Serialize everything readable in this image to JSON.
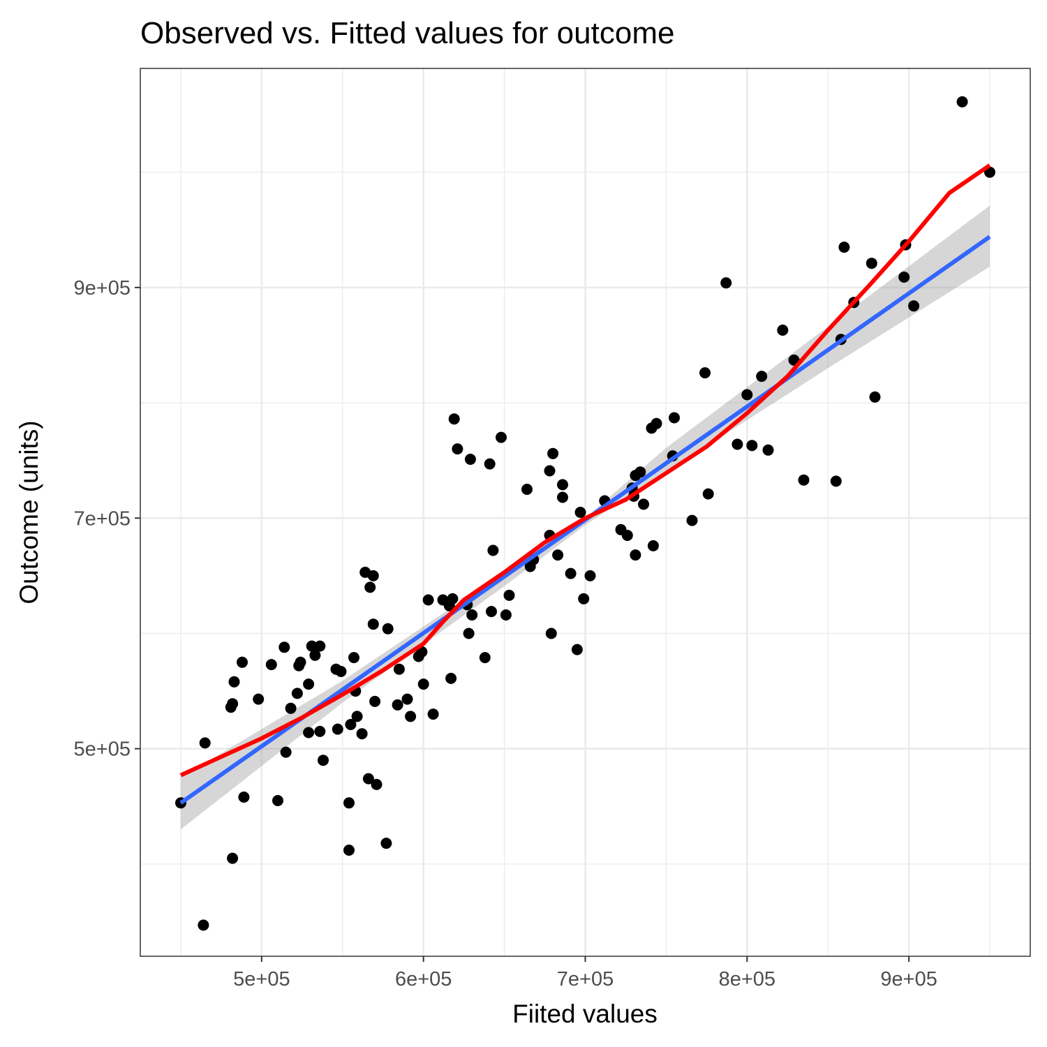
{
  "chart_data": {
    "type": "scatter",
    "title": "Observed vs. Fitted values for outcome",
    "xlabel": "Fiited values",
    "ylabel": "Outcome (units)",
    "xlim": [
      425000,
      975000
    ],
    "ylim": [
      320000,
      1090000
    ],
    "x_ticks": [
      500000,
      600000,
      700000,
      800000,
      900000
    ],
    "x_tick_labels": [
      "5e+05",
      "6e+05",
      "7e+05",
      "8e+05",
      "9e+05"
    ],
    "y_ticks": [
      500000,
      700000,
      900000
    ],
    "y_tick_labels": [
      "5e+05",
      "7e+05",
      "9e+05"
    ],
    "x_minor_grid": [
      450000,
      550000,
      650000,
      750000,
      850000,
      950000
    ],
    "y_minor_grid": [
      400000,
      600000,
      800000,
      1000000
    ],
    "grid": true,
    "legend": "none",
    "colors": {
      "points": "#000000",
      "linear_fit": "#3366FF",
      "confidence_band": "#999999",
      "smooth_fit": "#FF0000",
      "grid": "#EBEBEB",
      "panel_border": "#333333"
    },
    "points": [
      [
        450000,
        453000
      ],
      [
        464000,
        347000
      ],
      [
        465000,
        505000
      ],
      [
        481000,
        536000
      ],
      [
        482000,
        539000
      ],
      [
        483000,
        558000
      ],
      [
        482000,
        405000
      ],
      [
        488000,
        575000
      ],
      [
        489000,
        458000
      ],
      [
        498000,
        543000
      ],
      [
        506000,
        573000
      ],
      [
        510000,
        455000
      ],
      [
        514000,
        588000
      ],
      [
        515000,
        497000
      ],
      [
        518000,
        535000
      ],
      [
        522000,
        548000
      ],
      [
        523000,
        572000
      ],
      [
        524000,
        575000
      ],
      [
        529000,
        556000
      ],
      [
        529000,
        514000
      ],
      [
        531000,
        589000
      ],
      [
        533000,
        581000
      ],
      [
        536000,
        589000
      ],
      [
        536000,
        515000
      ],
      [
        538000,
        490000
      ],
      [
        546000,
        569000
      ],
      [
        547000,
        517000
      ],
      [
        549000,
        567000
      ],
      [
        554000,
        453000
      ],
      [
        554000,
        412000
      ],
      [
        555000,
        521000
      ],
      [
        557000,
        579000
      ],
      [
        558000,
        550000
      ],
      [
        559000,
        528000
      ],
      [
        562000,
        513000
      ],
      [
        564000,
        653000
      ],
      [
        566000,
        474000
      ],
      [
        567000,
        640000
      ],
      [
        569000,
        650000
      ],
      [
        569000,
        608000
      ],
      [
        570000,
        541000
      ],
      [
        571000,
        469000
      ],
      [
        577000,
        418000
      ],
      [
        578000,
        604000
      ],
      [
        584000,
        538000
      ],
      [
        585000,
        569000
      ],
      [
        590000,
        543000
      ],
      [
        592000,
        528000
      ],
      [
        597000,
        580000
      ],
      [
        599000,
        584000
      ],
      [
        600000,
        556000
      ],
      [
        603000,
        629000
      ],
      [
        606000,
        530000
      ],
      [
        612000,
        629000
      ],
      [
        616000,
        624000
      ],
      [
        617000,
        561000
      ],
      [
        618000,
        630000
      ],
      [
        619000,
        786000
      ],
      [
        621000,
        760000
      ],
      [
        627000,
        625000
      ],
      [
        628000,
        600000
      ],
      [
        629000,
        751000
      ],
      [
        630000,
        616000
      ],
      [
        638000,
        579000
      ],
      [
        641000,
        747000
      ],
      [
        642000,
        619000
      ],
      [
        643000,
        672000
      ],
      [
        648000,
        770000
      ],
      [
        651000,
        616000
      ],
      [
        653000,
        633000
      ],
      [
        664000,
        725000
      ],
      [
        666000,
        658000
      ],
      [
        668000,
        664000
      ],
      [
        678000,
        685000
      ],
      [
        678000,
        741000
      ],
      [
        679000,
        600000
      ],
      [
        680000,
        756000
      ],
      [
        683000,
        668000
      ],
      [
        686000,
        729000
      ],
      [
        686000,
        718000
      ],
      [
        691000,
        652000
      ],
      [
        695000,
        586000
      ],
      [
        697000,
        705000
      ],
      [
        699000,
        630000
      ],
      [
        703000,
        650000
      ],
      [
        712000,
        715000
      ],
      [
        722000,
        690000
      ],
      [
        726000,
        685000
      ],
      [
        729000,
        726000
      ],
      [
        730000,
        719000
      ],
      [
        731000,
        737000
      ],
      [
        731000,
        668000
      ],
      [
        734000,
        740000
      ],
      [
        736000,
        712000
      ],
      [
        741000,
        778000
      ],
      [
        742000,
        676000
      ],
      [
        744000,
        782000
      ],
      [
        754000,
        754000
      ],
      [
        755000,
        787000
      ],
      [
        766000,
        698000
      ],
      [
        774000,
        826000
      ],
      [
        776000,
        721000
      ],
      [
        787000,
        904000
      ],
      [
        794000,
        764000
      ],
      [
        800000,
        807000
      ],
      [
        803000,
        763000
      ],
      [
        809000,
        823000
      ],
      [
        813000,
        759000
      ],
      [
        822000,
        863000
      ],
      [
        829000,
        837000
      ],
      [
        835000,
        733000
      ],
      [
        855000,
        732000
      ],
      [
        858000,
        855000
      ],
      [
        860000,
        935000
      ],
      [
        866000,
        887000
      ],
      [
        877000,
        921000
      ],
      [
        879000,
        805000
      ],
      [
        897000,
        909000
      ],
      [
        898000,
        937000
      ],
      [
        903000,
        884000
      ],
      [
        933000,
        1061000
      ],
      [
        950000,
        1000000
      ]
    ],
    "linear_fit": {
      "x": [
        450000,
        950000
      ],
      "y": [
        453000,
        944000
      ]
    },
    "confidence_band": {
      "x": [
        450000,
        550000,
        650000,
        700000,
        750000,
        850000,
        950000
      ],
      "lower": [
        430000,
        540000,
        641000,
        694000,
        740000,
        830000,
        918000
      ],
      "upper": [
        475000,
        559000,
        653000,
        700000,
        761000,
        866000,
        971000
      ]
    },
    "smooth_fit": {
      "x": [
        450000,
        475000,
        500000,
        525000,
        550000,
        575000,
        600000,
        612000,
        625000,
        650000,
        675000,
        700000,
        725000,
        750000,
        775000,
        800000,
        825000,
        850000,
        875000,
        900000,
        925000,
        950000
      ],
      "y": [
        477000,
        493000,
        509000,
        527000,
        547000,
        568000,
        591000,
        610000,
        629000,
        653000,
        679000,
        700000,
        716000,
        739000,
        762000,
        791000,
        823000,
        863000,
        901000,
        940000,
        982000,
        1006000
      ]
    }
  }
}
